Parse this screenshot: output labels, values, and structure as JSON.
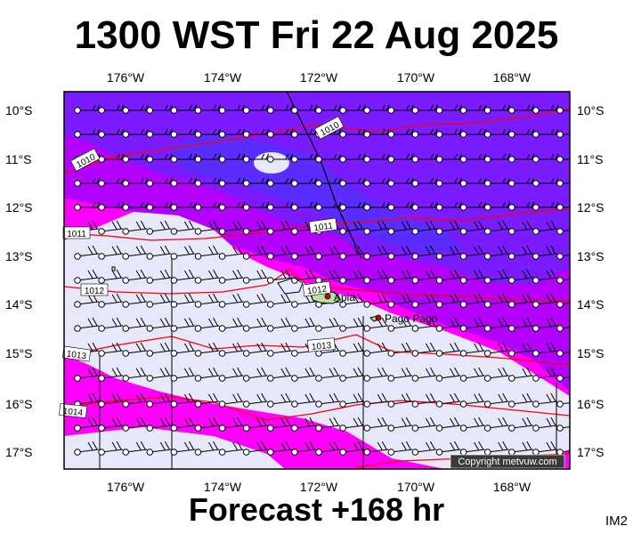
{
  "header": {
    "title": "1300 WST Fri 22 Aug 2025"
  },
  "footer": {
    "forecast": "Forecast +168 hr",
    "code": "IM2"
  },
  "map": {
    "lon_ticks": [
      "176°W",
      "174°W",
      "172°W",
      "170°W",
      "168°W"
    ],
    "lat_ticks": [
      "10°S",
      "11°S",
      "12°S",
      "13°S",
      "14°S",
      "15°S",
      "16°S",
      "17°S"
    ],
    "places": [
      {
        "name": "Apia",
        "lon": -171.76,
        "lat": -13.83
      },
      {
        "name": "Pago Pago",
        "lon": -170.7,
        "lat": -14.28
      }
    ],
    "isobar_labels": [
      "1010",
      "1010",
      "1011",
      "1011",
      "1012",
      "1012",
      "1013",
      "1013",
      "1014"
    ],
    "copyright": "Copyright metvuw.com"
  },
  "colors": {
    "calm": "#e8e8fc",
    "magenta": "#ff00ff",
    "violet": "#b400ff",
    "indigo": "#7a1cff",
    "deep": "#5a2cff",
    "isobar": "#ff0000"
  }
}
